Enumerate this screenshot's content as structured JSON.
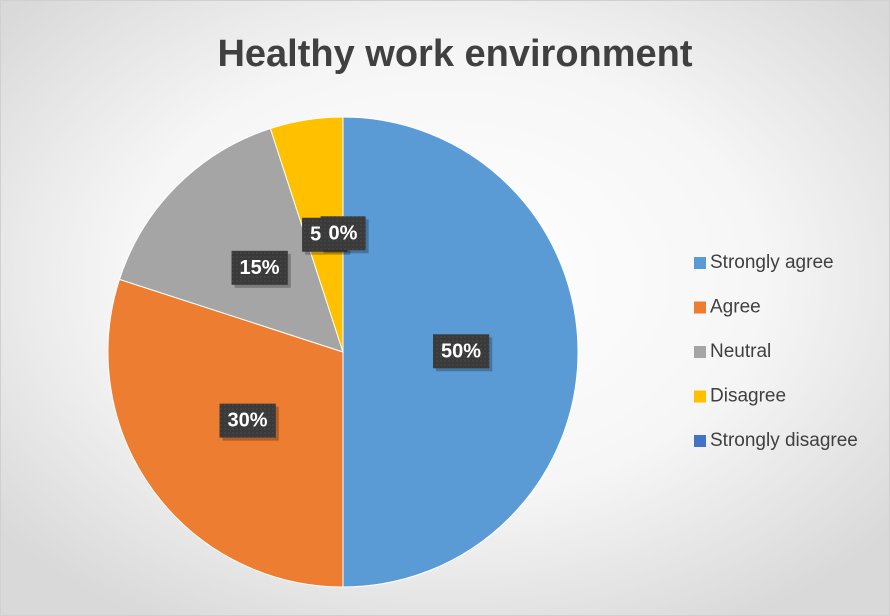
{
  "chart_data": {
    "type": "pie",
    "title": "Healthy work environment",
    "categories": [
      "Strongly agree",
      "Agree",
      "Neutral",
      "Disagree",
      "Strongly disagree"
    ],
    "values": [
      50,
      30,
      15,
      5,
      0
    ],
    "value_labels": [
      "50%",
      "30%",
      "15%",
      "5%",
      "0%"
    ],
    "colors": [
      "#5b9bd5",
      "#ed7d31",
      "#a5a5a5",
      "#ffc000",
      "#4472c4"
    ],
    "legend": "right"
  }
}
